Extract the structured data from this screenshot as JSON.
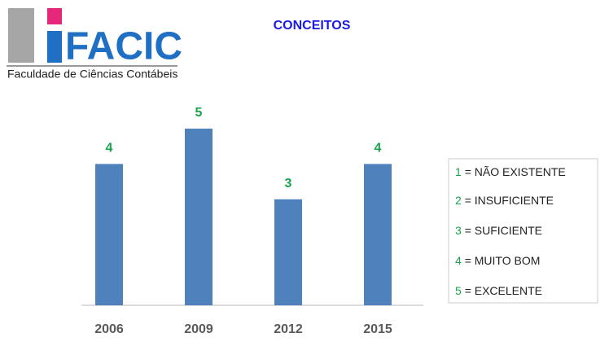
{
  "logo": {
    "name": "FACIC",
    "subtitle": "Faculdade de Ciências Contábeis"
  },
  "chart_data": {
    "type": "bar",
    "title": "CONCEITOS",
    "categories": [
      "2006",
      "2009",
      "2012",
      "2015"
    ],
    "values": [
      4,
      5,
      3,
      4
    ],
    "color": "#4f81bd",
    "value_label_color": "#1aa34a"
  },
  "legend": {
    "items": [
      {
        "key": "1",
        "label": "= NÃO EXISTENTE"
      },
      {
        "key": "2",
        "label": "= INSUFICIENTE"
      },
      {
        "key": "3",
        "label": "= SUFICIENTE"
      },
      {
        "key": "4",
        "label": "= MUITO BOM"
      },
      {
        "key": "5",
        "label": "= EXCELENTE"
      }
    ]
  }
}
